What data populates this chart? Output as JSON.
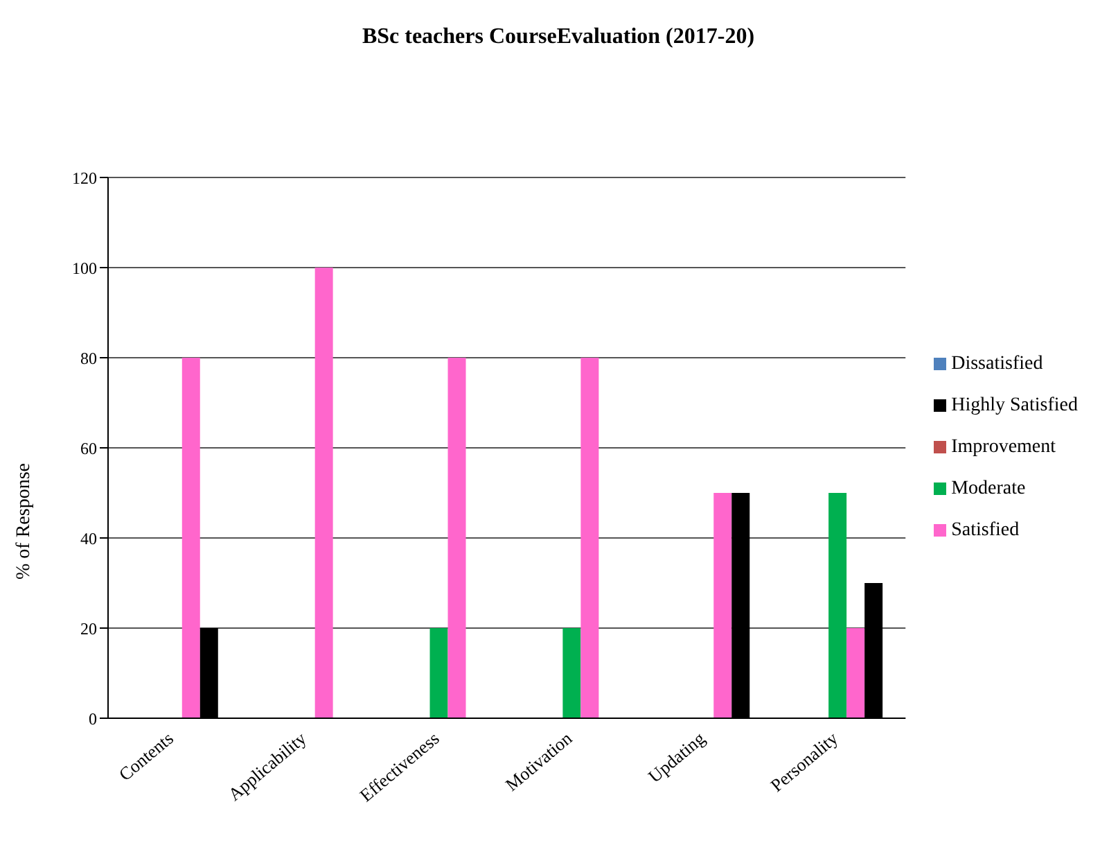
{
  "chart_data": {
    "type": "bar",
    "title": "BSc  teachers CourseEvaluation (2017-20)",
    "ylabel": "% of Response",
    "categories": [
      "Contents",
      "Applicability",
      "Effectiveness",
      "Motivation",
      "Updating",
      "Personality"
    ],
    "series": [
      {
        "name": "Dissatisfied",
        "color": "#4f81bd",
        "values": [
          0,
          0,
          0,
          0,
          0,
          0
        ]
      },
      {
        "name": "Improvement",
        "color": "#c0504d",
        "values": [
          0,
          0,
          0,
          0,
          0,
          0
        ]
      },
      {
        "name": "Moderate",
        "color": "#00b050",
        "values": [
          0,
          0,
          20,
          20,
          0,
          50
        ]
      },
      {
        "name": "Satisfied",
        "color": "#ff66cc",
        "values": [
          80,
          100,
          80,
          80,
          50,
          20
        ]
      },
      {
        "name": "Highly Satisfied",
        "color": "#000000",
        "values": [
          20,
          0,
          0,
          0,
          50,
          30
        ]
      }
    ],
    "ylim": [
      0,
      120
    ],
    "yticks": [
      0,
      20,
      40,
      60,
      80,
      100,
      120
    ],
    "grid": "y",
    "legend": "right"
  }
}
